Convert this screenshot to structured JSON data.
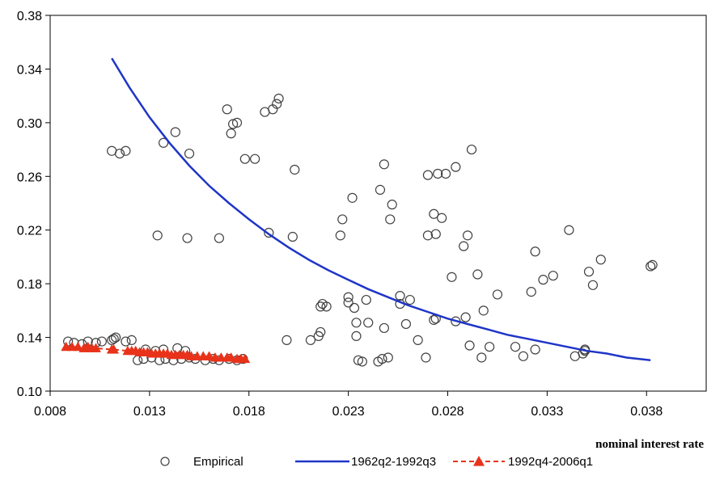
{
  "chart_data": {
    "type": "scatter",
    "title": "",
    "xlabel": "nominal interest rate",
    "ylabel": "",
    "xlim": [
      0.008,
      0.041
    ],
    "ylim": [
      0.1,
      0.38
    ],
    "x_ticks": [
      "0.008",
      "0.013",
      "0.018",
      "0.023",
      "0.028",
      "0.033",
      "0.038"
    ],
    "y_ticks": [
      "0.10",
      "0.14",
      "0.18",
      "0.22",
      "0.26",
      "0.30",
      "0.34",
      "0.38"
    ],
    "grid": false,
    "legend_position": "bottom",
    "series": [
      {
        "name": "Empirical",
        "kind": "scatter",
        "marker": "open-circle",
        "color": "#404040",
        "points": [
          [
            0.0089,
            0.137
          ],
          [
            0.0092,
            0.136
          ],
          [
            0.0096,
            0.135
          ],
          [
            0.0099,
            0.137
          ],
          [
            0.0103,
            0.136
          ],
          [
            0.0106,
            0.137
          ],
          [
            0.0111,
            0.138
          ],
          [
            0.0113,
            0.14
          ],
          [
            0.0118,
            0.137
          ],
          [
            0.0121,
            0.138
          ],
          [
            0.0112,
            0.139
          ],
          [
            0.0124,
            0.123
          ],
          [
            0.0127,
            0.124
          ],
          [
            0.0131,
            0.125
          ],
          [
            0.0135,
            0.123
          ],
          [
            0.0138,
            0.124
          ],
          [
            0.0142,
            0.123
          ],
          [
            0.0146,
            0.124
          ],
          [
            0.015,
            0.125
          ],
          [
            0.0153,
            0.124
          ],
          [
            0.0158,
            0.123
          ],
          [
            0.0162,
            0.124
          ],
          [
            0.0165,
            0.123
          ],
          [
            0.017,
            0.124
          ],
          [
            0.0174,
            0.123
          ],
          [
            0.0177,
            0.124
          ],
          [
            0.0128,
            0.131
          ],
          [
            0.0133,
            0.13
          ],
          [
            0.0137,
            0.131
          ],
          [
            0.0144,
            0.132
          ],
          [
            0.0148,
            0.13
          ],
          [
            0.0111,
            0.279
          ],
          [
            0.0115,
            0.277
          ],
          [
            0.0118,
            0.279
          ],
          [
            0.0134,
            0.216
          ],
          [
            0.0137,
            0.285
          ],
          [
            0.0143,
            0.293
          ],
          [
            0.0149,
            0.214
          ],
          [
            0.015,
            0.277
          ],
          [
            0.0165,
            0.214
          ],
          [
            0.0169,
            0.31
          ],
          [
            0.0171,
            0.292
          ],
          [
            0.0172,
            0.299
          ],
          [
            0.0174,
            0.3
          ],
          [
            0.0178,
            0.273
          ],
          [
            0.0183,
            0.273
          ],
          [
            0.0188,
            0.308
          ],
          [
            0.019,
            0.218
          ],
          [
            0.0192,
            0.31
          ],
          [
            0.0194,
            0.314
          ],
          [
            0.0195,
            0.318
          ],
          [
            0.0199,
            0.138
          ],
          [
            0.0202,
            0.215
          ],
          [
            0.0203,
            0.265
          ],
          [
            0.0211,
            0.138
          ],
          [
            0.0215,
            0.141
          ],
          [
            0.0216,
            0.163
          ],
          [
            0.0216,
            0.144
          ],
          [
            0.0217,
            0.165
          ],
          [
            0.0219,
            0.163
          ],
          [
            0.0226,
            0.216
          ],
          [
            0.0227,
            0.228
          ],
          [
            0.023,
            0.17
          ],
          [
            0.023,
            0.166
          ],
          [
            0.0232,
            0.244
          ],
          [
            0.0233,
            0.162
          ],
          [
            0.0234,
            0.141
          ],
          [
            0.0234,
            0.151
          ],
          [
            0.0235,
            0.123
          ],
          [
            0.0237,
            0.122
          ],
          [
            0.0239,
            0.168
          ],
          [
            0.024,
            0.151
          ],
          [
            0.0245,
            0.122
          ],
          [
            0.0246,
            0.25
          ],
          [
            0.0247,
            0.124
          ],
          [
            0.0248,
            0.269
          ],
          [
            0.0248,
            0.147
          ],
          [
            0.025,
            0.125
          ],
          [
            0.0251,
            0.228
          ],
          [
            0.0252,
            0.239
          ],
          [
            0.0256,
            0.171
          ],
          [
            0.0256,
            0.165
          ],
          [
            0.0259,
            0.15
          ],
          [
            0.0261,
            0.168
          ],
          [
            0.0265,
            0.138
          ],
          [
            0.0269,
            0.125
          ],
          [
            0.027,
            0.261
          ],
          [
            0.027,
            0.216
          ],
          [
            0.0273,
            0.232
          ],
          [
            0.0273,
            0.153
          ],
          [
            0.0274,
            0.154
          ],
          [
            0.0274,
            0.217
          ],
          [
            0.0275,
            0.262
          ],
          [
            0.0277,
            0.229
          ],
          [
            0.0279,
            0.262
          ],
          [
            0.0282,
            0.185
          ],
          [
            0.0284,
            0.267
          ],
          [
            0.0284,
            0.152
          ],
          [
            0.0288,
            0.208
          ],
          [
            0.0289,
            0.155
          ],
          [
            0.029,
            0.216
          ],
          [
            0.0291,
            0.134
          ],
          [
            0.0292,
            0.28
          ],
          [
            0.0295,
            0.187
          ],
          [
            0.0297,
            0.125
          ],
          [
            0.0298,
            0.16
          ],
          [
            0.0301,
            0.133
          ],
          [
            0.0305,
            0.172
          ],
          [
            0.0314,
            0.133
          ],
          [
            0.0318,
            0.126
          ],
          [
            0.0322,
            0.174
          ],
          [
            0.0324,
            0.204
          ],
          [
            0.0324,
            0.131
          ],
          [
            0.0328,
            0.183
          ],
          [
            0.0333,
            0.186
          ],
          [
            0.0341,
            0.22
          ],
          [
            0.0344,
            0.126
          ],
          [
            0.0348,
            0.128
          ],
          [
            0.0349,
            0.131
          ],
          [
            0.0349,
            0.13
          ],
          [
            0.0351,
            0.189
          ],
          [
            0.0353,
            0.179
          ],
          [
            0.0357,
            0.198
          ],
          [
            0.0382,
            0.193
          ],
          [
            0.0383,
            0.194
          ]
        ]
      },
      {
        "name": "1962q2-1992q3",
        "kind": "line",
        "color": "#1f35c8",
        "points": [
          [
            0.0111,
            0.348
          ],
          [
            0.012,
            0.326
          ],
          [
            0.013,
            0.304
          ],
          [
            0.014,
            0.285
          ],
          [
            0.015,
            0.268
          ],
          [
            0.016,
            0.253
          ],
          [
            0.017,
            0.24
          ],
          [
            0.018,
            0.228
          ],
          [
            0.019,
            0.217
          ],
          [
            0.02,
            0.207
          ],
          [
            0.021,
            0.198
          ],
          [
            0.022,
            0.19
          ],
          [
            0.023,
            0.183
          ],
          [
            0.024,
            0.176
          ],
          [
            0.025,
            0.17
          ],
          [
            0.026,
            0.164
          ],
          [
            0.027,
            0.159
          ],
          [
            0.028,
            0.154
          ],
          [
            0.029,
            0.15
          ],
          [
            0.03,
            0.146
          ],
          [
            0.031,
            0.142
          ],
          [
            0.032,
            0.139
          ],
          [
            0.033,
            0.136
          ],
          [
            0.034,
            0.133
          ],
          [
            0.035,
            0.13
          ],
          [
            0.036,
            0.128
          ],
          [
            0.037,
            0.125
          ],
          [
            0.0382,
            0.123
          ]
        ]
      },
      {
        "name": "1992q4-2006q1",
        "kind": "line-markers",
        "marker": "filled-triangle",
        "color": "#e8331a",
        "points": [
          [
            0.0088,
            0.133
          ],
          [
            0.0091,
            0.133
          ],
          [
            0.0094,
            0.133
          ],
          [
            0.0097,
            0.132
          ],
          [
            0.0099,
            0.133
          ],
          [
            0.0101,
            0.132
          ],
          [
            0.0103,
            0.132
          ],
          [
            0.0111,
            0.131
          ],
          [
            0.0112,
            0.131
          ],
          [
            0.0119,
            0.13
          ],
          [
            0.0121,
            0.13
          ],
          [
            0.0123,
            0.13
          ],
          [
            0.0125,
            0.129
          ],
          [
            0.0127,
            0.129
          ],
          [
            0.0129,
            0.129
          ],
          [
            0.0131,
            0.128
          ],
          [
            0.0133,
            0.128
          ],
          [
            0.0135,
            0.128
          ],
          [
            0.0137,
            0.128
          ],
          [
            0.0139,
            0.128
          ],
          [
            0.0141,
            0.127
          ],
          [
            0.0143,
            0.127
          ],
          [
            0.0145,
            0.127
          ],
          [
            0.0147,
            0.127
          ],
          [
            0.0149,
            0.127
          ],
          [
            0.0151,
            0.126
          ],
          [
            0.0154,
            0.126
          ],
          [
            0.0157,
            0.126
          ],
          [
            0.016,
            0.126
          ],
          [
            0.0163,
            0.125
          ],
          [
            0.0166,
            0.125
          ],
          [
            0.0169,
            0.125
          ],
          [
            0.0171,
            0.125
          ],
          [
            0.0174,
            0.124
          ],
          [
            0.0176,
            0.124
          ],
          [
            0.0178,
            0.124
          ]
        ]
      }
    ]
  }
}
